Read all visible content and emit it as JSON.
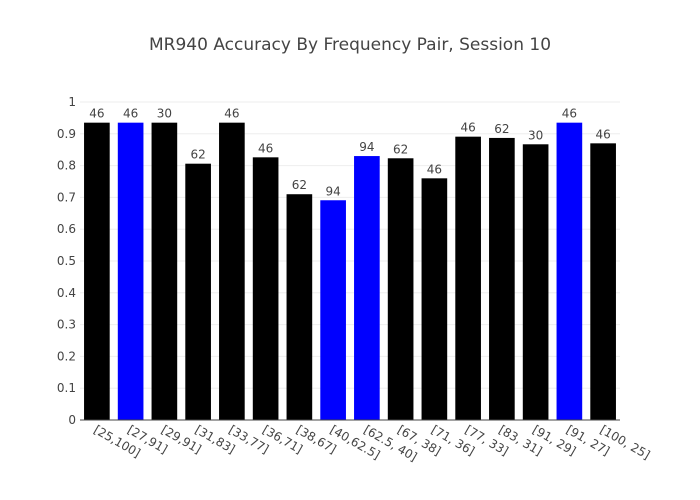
{
  "chart_data": {
    "type": "bar",
    "title": "MR940 Accuracy By Frequency Pair, Session 10",
    "xlabel": "",
    "ylabel": "",
    "ylim": [
      0,
      1
    ],
    "yticks": [
      "0",
      "0.1",
      "0.2",
      "0.3",
      "0.4",
      "0.5",
      "0.6",
      "0.7",
      "0.8",
      "0.9",
      "1"
    ],
    "grid": true,
    "categories": [
      "[25,100]",
      "[27,91]",
      "[29,91]",
      "[31,83]",
      "[33,77]",
      "[36,71]",
      "[38,67]",
      "[40,62.5]",
      "[62.5, 40]",
      "[67, 38]",
      "[71, 36]",
      "[77, 33]",
      "[83, 31]",
      "[91, 29]",
      "[91, 27]",
      "[100, 25]"
    ],
    "values": [
      0.935,
      0.935,
      0.935,
      0.806,
      0.935,
      0.826,
      0.71,
      0.691,
      0.83,
      0.823,
      0.76,
      0.891,
      0.887,
      0.867,
      0.935,
      0.87
    ],
    "data_labels": [
      "46",
      "46",
      "30",
      "62",
      "46",
      "46",
      "62",
      "94",
      "94",
      "62",
      "46",
      "46",
      "62",
      "30",
      "46",
      "46"
    ],
    "colors": [
      "#000000",
      "#0000ff",
      "#000000",
      "#000000",
      "#000000",
      "#000000",
      "#000000",
      "#0000ff",
      "#0000ff",
      "#000000",
      "#000000",
      "#000000",
      "#000000",
      "#000000",
      "#0000ff",
      "#000000"
    ]
  }
}
